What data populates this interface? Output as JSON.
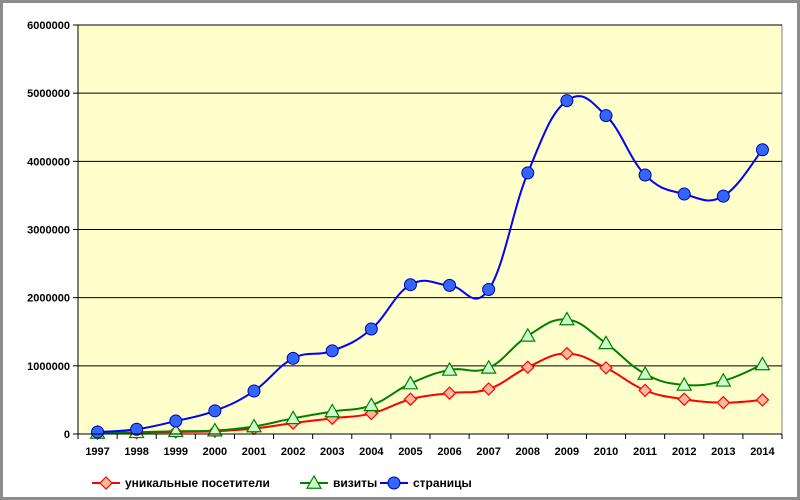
{
  "chart_data": {
    "type": "line",
    "title": "",
    "xlabel": "",
    "ylabel": "",
    "ylim": [
      0,
      6000000
    ],
    "yticks": [
      "0",
      "1000000",
      "2000000",
      "3000000",
      "4000000",
      "5000000",
      "6000000"
    ],
    "grid": "horizontal",
    "legend_position": "bottom",
    "plot_background": "#ffffcc",
    "categories": [
      "1997",
      "1998",
      "1999",
      "2000",
      "2001",
      "2002",
      "2003",
      "2004",
      "2005",
      "2006",
      "2007",
      "2008",
      "2009",
      "2010",
      "2011",
      "2012",
      "2013",
      "2014"
    ],
    "series": [
      {
        "name": "уникальные посетители",
        "color": "#ff0000",
        "marker": "diamond",
        "marker_fill": "#ffb899",
        "values": [
          10000,
          20000,
          30000,
          40000,
          80000,
          160000,
          230000,
          300000,
          510000,
          600000,
          660000,
          980000,
          1180000,
          970000,
          640000,
          510000,
          460000,
          500000
        ]
      },
      {
        "name": "визиты",
        "color": "#008000",
        "marker": "triangle",
        "marker_fill": "#ccffcc",
        "values": [
          15000,
          25000,
          40000,
          50000,
          110000,
          230000,
          330000,
          420000,
          740000,
          940000,
          970000,
          1440000,
          1680000,
          1330000,
          880000,
          720000,
          780000,
          1020000
        ]
      },
      {
        "name": "страницы",
        "color": "#0000ff",
        "marker": "circle",
        "marker_fill": "#3366ff",
        "values": [
          30000,
          70000,
          190000,
          340000,
          630000,
          1110000,
          1220000,
          1540000,
          2190000,
          2180000,
          2120000,
          3830000,
          4890000,
          4670000,
          3800000,
          3520000,
          3490000,
          4170000
        ]
      }
    ]
  }
}
